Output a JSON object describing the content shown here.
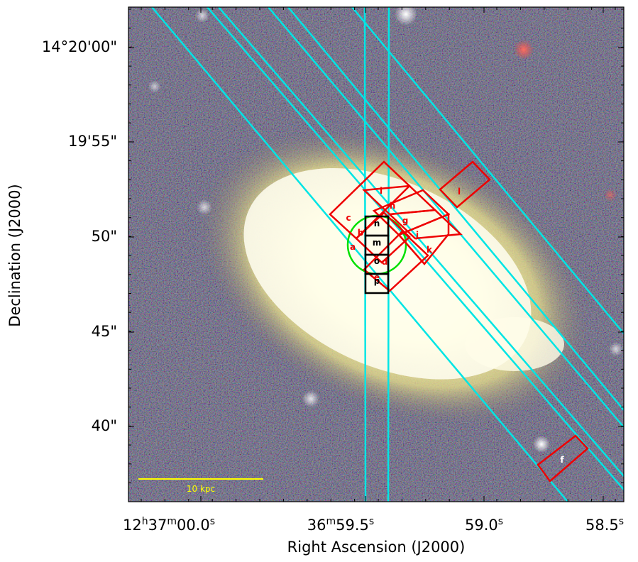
{
  "figure": {
    "xlabel": "Right Ascension (J2000)",
    "ylabel": "Declination (J2000)"
  },
  "ra_ticks": [
    {
      "h": "12",
      "hs": "h",
      "m": "37",
      "ms": "m",
      "s": "00.0",
      "ss": "s"
    },
    {
      "m": "36",
      "ms": "m",
      "s": "59.5",
      "ss": "s"
    },
    {
      "s": "59.0",
      "ss": "s"
    },
    {
      "s": "58.5",
      "ss": "s"
    }
  ],
  "dec_ticks": [
    "14°20'00\"",
    "19'55\"",
    "50\"",
    "45\"",
    "40\""
  ],
  "scale_bar": {
    "label": "10 kpc",
    "color": "#ffff00"
  },
  "regions": {
    "red": [
      "a",
      "b",
      "c",
      "d",
      "e",
      "f",
      "g",
      "h",
      "i",
      "j",
      "k",
      "l"
    ],
    "black": [
      "m",
      "n",
      "o",
      "p"
    ],
    "red_color": "#ee0000",
    "black_color": "#000000",
    "circle_color": "#00e000",
    "slit_color": "#00e5e5"
  }
}
